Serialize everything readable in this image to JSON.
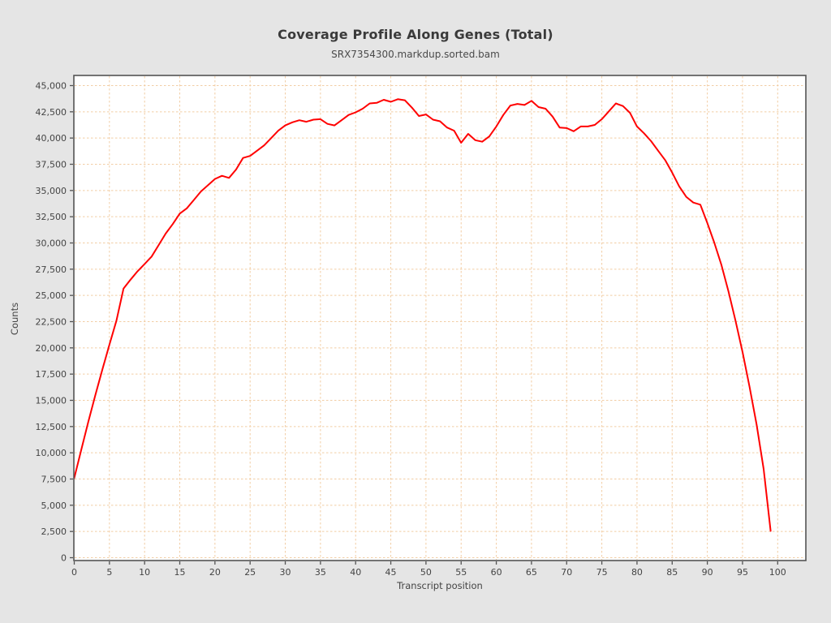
{
  "chart_data": {
    "type": "line",
    "title": "Coverage Profile Along Genes (Total)",
    "subtitle": "SRX7354300.markdup.sorted.bam",
    "xlabel": "Transcript position",
    "ylabel": "Counts",
    "grid": true,
    "legend_position": "none",
    "x_ticks": [
      0,
      5,
      10,
      15,
      20,
      25,
      30,
      35,
      40,
      45,
      50,
      55,
      60,
      65,
      70,
      75,
      80,
      85,
      90,
      95,
      100
    ],
    "y_ticks": [
      0,
      2500,
      5000,
      7500,
      10000,
      12500,
      15000,
      17500,
      20000,
      22500,
      25000,
      27500,
      30000,
      32500,
      35000,
      37500,
      40000,
      42500,
      45000
    ],
    "x_range": [
      0,
      104
    ],
    "y_range": [
      0,
      46000
    ],
    "colors": {
      "line": "#ff0000",
      "grid": "#f2cda4",
      "plot_background": "#ffffff",
      "page_background": "#e5e5e5",
      "frame": "#545454",
      "text": "#444444"
    },
    "series": [
      {
        "name": "coverage",
        "x_start": 0,
        "x_step": 1,
        "values": [
          7600,
          10300,
          12950,
          15500,
          17950,
          20300,
          22600,
          25650,
          26500,
          27300,
          28000,
          28700,
          29800,
          30900,
          31800,
          32800,
          33300,
          34100,
          34900,
          35500,
          36100,
          36400,
          36200,
          37000,
          38100,
          38300,
          38800,
          39300,
          40000,
          40700,
          41200,
          41500,
          41700,
          41550,
          41750,
          41800,
          41350,
          41200,
          41700,
          42200,
          42450,
          42800,
          43300,
          43350,
          43650,
          43450,
          43700,
          43600,
          42900,
          42100,
          42250,
          41750,
          41600,
          41000,
          40700,
          39550,
          40400,
          39800,
          39650,
          40150,
          41100,
          42200,
          43100,
          43250,
          43150,
          43550,
          42950,
          42800,
          42050,
          41000,
          40950,
          40650,
          41100,
          41100,
          41250,
          41800,
          42550,
          43300,
          43050,
          42400,
          41100,
          40450,
          39700,
          38800,
          37900,
          36700,
          35400,
          34400,
          33850,
          33650,
          31900,
          30000,
          27900,
          25400,
          22600,
          19600,
          16300,
          12700,
          8450,
          2550
        ]
      }
    ]
  }
}
